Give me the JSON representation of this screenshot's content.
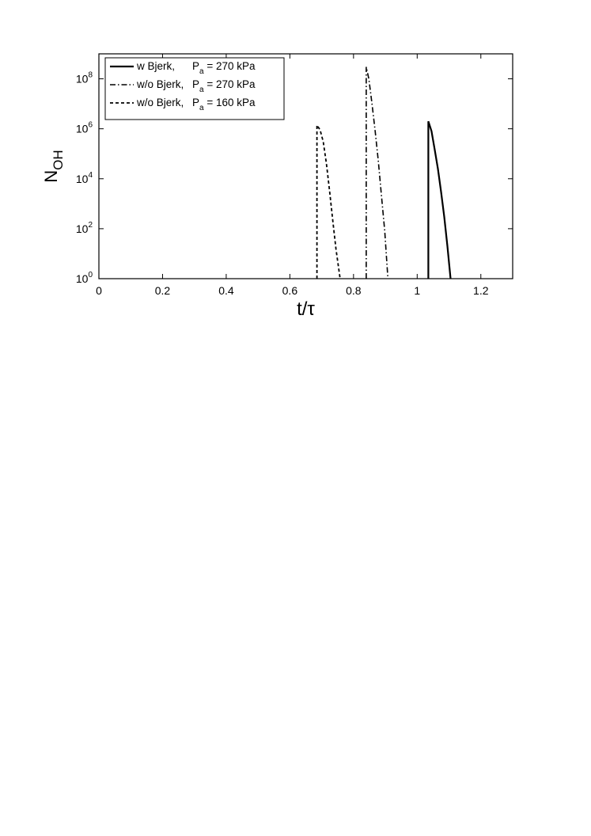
{
  "chart_data": {
    "type": "line",
    "xlabel": "t/τ",
    "ylabel_main": "N",
    "ylabel_sub": "OH",
    "xlim": [
      0,
      1.3
    ],
    "ylim": [
      1,
      1000000000
    ],
    "yscale": "log",
    "grid": false,
    "legend_position": "top-left",
    "x_ticks": [
      "0",
      "0.2",
      "0.4",
      "0.6",
      "0.8",
      "1",
      "1.2"
    ],
    "y_tick_base": "10",
    "y_tick_exponents": [
      "0",
      "2",
      "4",
      "6",
      "8"
    ],
    "series": [
      {
        "legend_prefix": "w Bjerk,",
        "legend_p": "P",
        "legend_p_sub": "a",
        "legend_value": "= 270 kPa",
        "style": "solid",
        "points": [
          [
            1.035,
            1
          ],
          [
            1.035,
            2000000
          ],
          [
            1.045,
            800000
          ],
          [
            1.055,
            150000
          ],
          [
            1.065,
            25000
          ],
          [
            1.075,
            3000
          ],
          [
            1.085,
            300
          ],
          [
            1.095,
            20
          ],
          [
            1.105,
            1
          ]
        ]
      },
      {
        "legend_prefix": "w/o Bjerk,",
        "legend_p": "P",
        "legend_p_sub": "a",
        "legend_value": "= 270 kPa",
        "style": "dashdot",
        "points": [
          [
            0.84,
            1
          ],
          [
            0.84,
            300000000
          ],
          [
            0.848,
            100000000
          ],
          [
            0.858,
            10000000
          ],
          [
            0.868,
            800000
          ],
          [
            0.878,
            50000
          ],
          [
            0.888,
            2000
          ],
          [
            0.898,
            80
          ],
          [
            0.908,
            1
          ]
        ]
      },
      {
        "legend_prefix": "w/o Bjerk,",
        "legend_p": "P",
        "legend_p_sub": "a",
        "legend_value": "= 160 kPa",
        "style": "dashed",
        "points": [
          [
            0.685,
            1
          ],
          [
            0.685,
            1400000
          ],
          [
            0.695,
            900000
          ],
          [
            0.705,
            300000
          ],
          [
            0.715,
            40000
          ],
          [
            0.725,
            3000
          ],
          [
            0.735,
            200
          ],
          [
            0.745,
            15
          ],
          [
            0.758,
            1
          ]
        ]
      }
    ]
  }
}
